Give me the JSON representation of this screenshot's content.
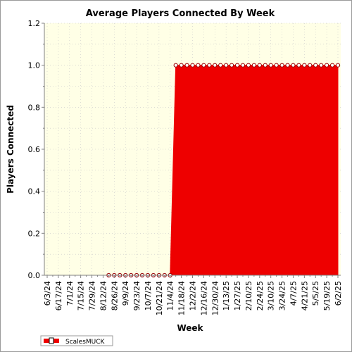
{
  "chart_data": {
    "type": "area",
    "title": "Average Players Connected By Week",
    "xlabel": "Week",
    "ylabel": "Players Connected",
    "ylim": [
      0,
      1.2
    ],
    "y_ticks": [
      "0.0",
      "0.2",
      "0.4",
      "0.6",
      "0.8",
      "1.0",
      "1.2"
    ],
    "x_tick_labels": [
      "6/3/24",
      "6/17/24",
      "7/1/24",
      "7/15/24",
      "7/29/24",
      "8/12/24",
      "8/26/24",
      "9/9/24",
      "9/23/24",
      "10/7/24",
      "10/21/24",
      "11/4/24",
      "11/18/24",
      "12/2/24",
      "12/16/24",
      "12/30/24",
      "1/13/25",
      "1/27/25",
      "2/10/25",
      "2/24/25",
      "3/10/25",
      "3/24/25",
      "4/7/25",
      "4/21/25",
      "5/5/25",
      "5/19/25",
      "6/2/25"
    ],
    "grid": true,
    "legend_position": "bottom-left",
    "series": [
      {
        "name": "ScalesMUCK",
        "color": "#ee0000",
        "marker_fill": "#ffffff",
        "x": [
          "6/3/24",
          "6/10/24",
          "6/17/24",
          "6/24/24",
          "7/1/24",
          "7/8/24",
          "7/15/24",
          "7/22/24",
          "7/29/24",
          "8/5/24",
          "8/12/24",
          "8/19/24",
          "8/26/24",
          "9/2/24",
          "9/9/24",
          "9/16/24",
          "9/23/24",
          "9/30/24",
          "10/7/24",
          "10/14/24",
          "10/21/24",
          "10/28/24",
          "11/4/24",
          "11/11/24",
          "11/18/24",
          "11/25/24",
          "12/2/24",
          "12/9/24",
          "12/16/24",
          "12/23/24",
          "12/30/24",
          "1/6/25",
          "1/13/25",
          "1/20/25",
          "1/27/25",
          "2/3/25",
          "2/10/25",
          "2/17/25",
          "2/24/25",
          "3/3/25",
          "3/10/25",
          "3/17/25",
          "3/24/25",
          "3/31/25",
          "4/7/25",
          "4/14/25",
          "4/21/25",
          "4/28/25",
          "5/5/25",
          "5/12/25",
          "5/19/25",
          "5/26/25",
          "6/2/25"
        ],
        "values": [
          null,
          null,
          null,
          null,
          null,
          null,
          null,
          null,
          null,
          null,
          null,
          0,
          0,
          0,
          0,
          0,
          0,
          0,
          0,
          0,
          0,
          0,
          0,
          1,
          1,
          1,
          1,
          1,
          1,
          1,
          1,
          1,
          1,
          1,
          1,
          1,
          1,
          1,
          1,
          1,
          1,
          1,
          1,
          1,
          1,
          1,
          1,
          1,
          1,
          1,
          1,
          1,
          1
        ]
      }
    ],
    "plot_background": "#ffffe6"
  }
}
